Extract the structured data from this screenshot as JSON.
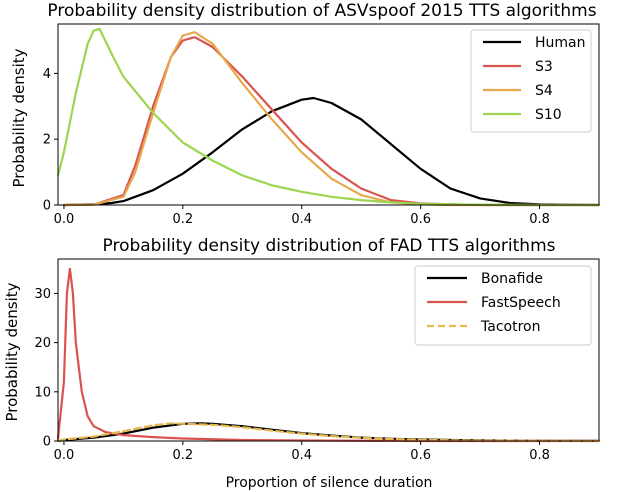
{
  "chart_data": [
    {
      "type": "line",
      "title": "Probability density distribution of ASVspoof 2015 TTS algorithms",
      "xlabel": "",
      "ylabel": "Probability density",
      "xlim": [
        -0.01,
        0.9
      ],
      "ylim": [
        0,
        5.5
      ],
      "xticks": [
        0.0,
        0.2,
        0.4,
        0.6,
        0.8
      ],
      "xtick_labels": [
        "0.0",
        "0.2",
        "0.4",
        "0.6",
        "0.8"
      ],
      "yticks": [
        0,
        2,
        4
      ],
      "ytick_labels": [
        "0",
        "2",
        "4"
      ],
      "legend_position": "top-right",
      "series": [
        {
          "name": "Human",
          "color": "#000000",
          "dash": "solid",
          "x": [
            0.0,
            0.05,
            0.08,
            0.1,
            0.15,
            0.2,
            0.25,
            0.3,
            0.35,
            0.4,
            0.42,
            0.45,
            0.5,
            0.55,
            0.6,
            0.65,
            0.7,
            0.75,
            0.8,
            0.85,
            0.9
          ],
          "y": [
            0.0,
            0.02,
            0.06,
            0.12,
            0.45,
            0.95,
            1.6,
            2.3,
            2.85,
            3.2,
            3.25,
            3.1,
            2.6,
            1.85,
            1.1,
            0.5,
            0.2,
            0.06,
            0.02,
            0.01,
            0.0
          ]
        },
        {
          "name": "S3",
          "color": "#d9534f",
          "dash": "solid",
          "x": [
            0.0,
            0.05,
            0.1,
            0.12,
            0.15,
            0.18,
            0.2,
            0.22,
            0.25,
            0.3,
            0.35,
            0.4,
            0.45,
            0.5,
            0.55,
            0.6,
            0.65,
            0.7,
            0.8,
            0.9
          ],
          "y": [
            0.0,
            0.01,
            0.3,
            1.2,
            3.0,
            4.5,
            5.0,
            5.1,
            4.8,
            3.9,
            2.9,
            1.9,
            1.1,
            0.5,
            0.15,
            0.05,
            0.02,
            0.0,
            0.0,
            0.0
          ]
        },
        {
          "name": "S4",
          "color": "#e6a94b",
          "dash": "solid",
          "x": [
            0.0,
            0.05,
            0.1,
            0.12,
            0.15,
            0.18,
            0.2,
            0.22,
            0.25,
            0.3,
            0.35,
            0.4,
            0.45,
            0.5,
            0.55,
            0.6,
            0.65,
            0.7,
            0.8,
            0.9
          ],
          "y": [
            0.0,
            0.01,
            0.25,
            1.0,
            2.8,
            4.5,
            5.15,
            5.25,
            4.9,
            3.7,
            2.6,
            1.6,
            0.8,
            0.3,
            0.08,
            0.02,
            0.0,
            0.0,
            0.0,
            0.0
          ]
        },
        {
          "name": "S10",
          "color": "#9ed44f",
          "dash": "solid",
          "x": [
            -0.01,
            0.0,
            0.02,
            0.04,
            0.05,
            0.06,
            0.08,
            0.1,
            0.15,
            0.2,
            0.25,
            0.3,
            0.35,
            0.4,
            0.45,
            0.5,
            0.55,
            0.6,
            0.7,
            0.8,
            0.9
          ],
          "y": [
            0.9,
            1.6,
            3.4,
            4.9,
            5.3,
            5.35,
            4.6,
            3.9,
            2.8,
            1.9,
            1.35,
            0.9,
            0.6,
            0.4,
            0.25,
            0.15,
            0.08,
            0.04,
            0.01,
            0.0,
            0.0
          ]
        }
      ]
    },
    {
      "type": "line",
      "title": "Probability density distribution of FAD TTS algorithms",
      "xlabel": "Proportion of silence duration",
      "ylabel": "Probability density",
      "xlim": [
        -0.01,
        0.9
      ],
      "ylim": [
        0,
        37
      ],
      "xticks": [
        0.0,
        0.2,
        0.4,
        0.6,
        0.8
      ],
      "xtick_labels": [
        "0.0",
        "0.2",
        "0.4",
        "0.6",
        "0.8"
      ],
      "yticks": [
        0,
        10,
        20,
        30
      ],
      "ytick_labels": [
        "0",
        "10",
        "20",
        "30"
      ],
      "legend_position": "top-right",
      "series": [
        {
          "name": "Bonafide",
          "color": "#000000",
          "dash": "solid",
          "x": [
            -0.01,
            0.0,
            0.05,
            0.1,
            0.15,
            0.2,
            0.23,
            0.25,
            0.3,
            0.35,
            0.4,
            0.45,
            0.5,
            0.55,
            0.6,
            0.65,
            0.7,
            0.8,
            0.9
          ],
          "y": [
            0.0,
            0.2,
            0.7,
            1.5,
            2.7,
            3.5,
            3.6,
            3.5,
            3.0,
            2.3,
            1.6,
            1.1,
            0.7,
            0.45,
            0.3,
            0.2,
            0.12,
            0.05,
            0.02
          ]
        },
        {
          "name": "FastSpeech",
          "color": "#d9534f",
          "dash": "solid",
          "x": [
            -0.01,
            0.0,
            0.005,
            0.01,
            0.015,
            0.02,
            0.03,
            0.04,
            0.05,
            0.07,
            0.1,
            0.15,
            0.2,
            0.3,
            0.4,
            0.6,
            0.9
          ],
          "y": [
            0.5,
            12.0,
            30.0,
            35.0,
            30.0,
            20.0,
            10.0,
            5.0,
            3.0,
            1.8,
            1.2,
            0.8,
            0.5,
            0.2,
            0.1,
            0.0,
            0.0
          ]
        },
        {
          "name": "Tacotron",
          "color": "#e6b84f",
          "dash": "dashed",
          "x": [
            -0.01,
            0.0,
            0.05,
            0.1,
            0.15,
            0.18,
            0.2,
            0.25,
            0.3,
            0.35,
            0.4,
            0.45,
            0.5,
            0.55,
            0.6,
            0.65,
            0.7,
            0.8,
            0.9
          ],
          "y": [
            0.0,
            0.3,
            0.9,
            2.0,
            3.2,
            3.6,
            3.5,
            3.3,
            2.8,
            2.1,
            1.5,
            1.0,
            0.65,
            0.4,
            0.25,
            0.15,
            0.1,
            0.04,
            0.01
          ]
        }
      ]
    }
  ]
}
